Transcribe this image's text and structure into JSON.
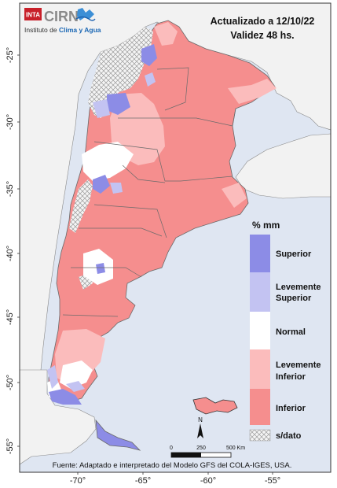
{
  "header": {
    "org_badge": "INTA",
    "org_name": "CIRN",
    "institute_prefix": "Instituto de ",
    "institute_accent": "Clima y Agua",
    "updated_line": "Actualizado a 12/10/22",
    "validity_line": "Validez 48 hs."
  },
  "axes": {
    "lat_ticks": [
      "-25°",
      "-30°",
      "-35°",
      "-40°",
      "-45°",
      "-50°",
      "-55°"
    ],
    "lon_ticks": [
      "-70°",
      "-65°",
      "-60°",
      "-55°"
    ]
  },
  "legend": {
    "title": "% mm",
    "items": [
      {
        "label_lines": [
          "Superior"
        ],
        "color": "#8c8ce6"
      },
      {
        "label_lines": [
          "Levemente",
          "Superior"
        ],
        "color": "#c3c3f2"
      },
      {
        "label_lines": [
          "Normal"
        ],
        "color": "#ffffff"
      },
      {
        "label_lines": [
          "Levemente",
          "Inferior"
        ],
        "color": "#fbbcbc"
      },
      {
        "label_lines": [
          "Inferior"
        ],
        "color": "#f58e8e"
      }
    ],
    "nodata_label": "s/dato"
  },
  "scale": {
    "ticks": [
      "0",
      "250",
      "500 Km"
    ],
    "north_label": "N"
  },
  "footer": {
    "source": "Fuente: Adaptado e interpretado del Modelo GFS del COLA-IGES, USA."
  },
  "colors": {
    "ocean": "#dfe6f2",
    "neighbor": "#f2f2f2",
    "inferior": "#f58e8e",
    "lev_inferior": "#fbbcbc",
    "normal": "#ffffff",
    "lev_superior": "#c3c3f2",
    "superior": "#8c8ce6"
  }
}
